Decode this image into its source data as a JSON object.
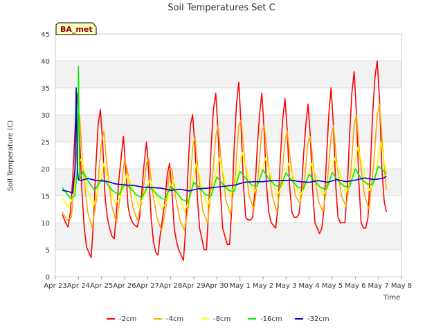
{
  "chart_data": {
    "type": "line",
    "title": "Soil Temperatures Set C",
    "xlabel": "Time",
    "ylabel": "Soil Temperature (C)",
    "badge": "BA_met",
    "ylim": [
      0,
      45
    ],
    "yticks": [
      "0",
      "5",
      "10",
      "15",
      "20",
      "25",
      "30",
      "35",
      "40",
      "45"
    ],
    "xlim": [
      0,
      15
    ],
    "xticks": [
      "Apr 23",
      "Apr 24",
      "Apr 25",
      "Apr 26",
      "Apr 27",
      "Apr 28",
      "Apr 29",
      "Apr 30",
      "May 1",
      "May 2",
      "May 3",
      "May 4",
      "May 5",
      "May 6",
      "May 7",
      "May 8"
    ],
    "x_unit": "days since Apr 23 00:00",
    "grid": true,
    "legend_position": "bottom",
    "series": [
      {
        "name": "-2cm",
        "color": "#ff0000",
        "x": [
          0.3,
          0.45,
          0.55,
          0.65,
          0.75,
          0.85,
          0.95,
          1.05,
          1.15,
          1.25,
          1.35,
          1.45,
          1.55,
          1.65,
          1.75,
          1.85,
          1.95,
          2.05,
          2.15,
          2.25,
          2.35,
          2.45,
          2.55,
          2.65,
          2.75,
          2.85,
          2.95,
          3.05,
          3.15,
          3.25,
          3.35,
          3.45,
          3.55,
          3.65,
          3.75,
          3.85,
          3.95,
          4.05,
          4.15,
          4.25,
          4.35,
          4.45,
          4.55,
          4.65,
          4.75,
          4.85,
          4.95,
          5.05,
          5.15,
          5.25,
          5.35,
          5.45,
          5.55,
          5.65,
          5.75,
          5.85,
          5.95,
          6.05,
          6.15,
          6.25,
          6.35,
          6.45,
          6.55,
          6.65,
          6.75,
          6.85,
          6.95,
          7.05,
          7.15,
          7.25,
          7.35,
          7.45,
          7.55,
          7.65,
          7.75,
          7.85,
          7.95,
          8.05,
          8.15,
          8.25,
          8.35,
          8.45,
          8.55,
          8.65,
          8.75,
          8.85,
          8.95,
          9.05,
          9.15,
          9.25,
          9.35,
          9.45,
          9.55,
          9.65,
          9.75,
          9.85,
          9.95,
          10.05,
          10.15,
          10.25,
          10.35,
          10.45,
          10.55,
          10.65,
          10.75,
          10.85,
          10.95,
          11.05,
          11.15,
          11.25,
          11.35,
          11.45,
          11.55,
          11.65,
          11.75,
          11.85,
          11.95,
          12.05,
          12.15,
          12.25,
          12.35,
          12.45,
          12.55,
          12.65,
          12.75,
          12.85,
          12.95,
          13.05,
          13.15,
          13.25,
          13.35,
          13.45,
          13.55,
          13.65,
          13.75,
          13.85,
          13.95,
          14.05,
          14.15,
          14.25,
          14.35
        ],
        "y": [
          11.5,
          10,
          9.2,
          12,
          18,
          27,
          34,
          26,
          16,
          9,
          5.5,
          4.5,
          3.5,
          10,
          20,
          28,
          31,
          25,
          15,
          11,
          9,
          7.5,
          7,
          12,
          18,
          22,
          26,
          20,
          13,
          11,
          10,
          9.5,
          9.2,
          11,
          16,
          21,
          25,
          19,
          11,
          6.5,
          4.5,
          4,
          8,
          11,
          14,
          19,
          21,
          16,
          9,
          6.5,
          5,
          4,
          3,
          9,
          20,
          28,
          30,
          24,
          15,
          9,
          7,
          5,
          5,
          13,
          24,
          31,
          34,
          27,
          16,
          9,
          7.5,
          6,
          6,
          13,
          24,
          32,
          36,
          28,
          17,
          11,
          10.5,
          10.5,
          11,
          16,
          24,
          30,
          34,
          27,
          17,
          12,
          10,
          9.5,
          9,
          13,
          22,
          29,
          33,
          27,
          17,
          12,
          11,
          11,
          11.5,
          15,
          22,
          28,
          32,
          26,
          16,
          10,
          9,
          8,
          9,
          13,
          22,
          30,
          35,
          28,
          17,
          11,
          10,
          10,
          10,
          16,
          26,
          34,
          38,
          30,
          18,
          10,
          9,
          9,
          11,
          20,
          30,
          37,
          40,
          33,
          20,
          14,
          12
        ]
      },
      {
        "name": "-4cm",
        "color": "#ffa500",
        "x": [
          0.3,
          0.5,
          0.7,
          0.9,
          1.05,
          1.2,
          1.4,
          1.6,
          1.8,
          2.0,
          2.1,
          2.25,
          2.45,
          2.65,
          2.85,
          3.0,
          3.15,
          3.35,
          3.55,
          3.75,
          3.95,
          4.05,
          4.2,
          4.4,
          4.6,
          4.8,
          4.95,
          5.05,
          5.2,
          5.4,
          5.6,
          5.8,
          5.95,
          6.05,
          6.2,
          6.4,
          6.6,
          6.8,
          6.95,
          7.05,
          7.2,
          7.4,
          7.6,
          7.8,
          7.95,
          8.05,
          8.2,
          8.4,
          8.6,
          8.8,
          8.95,
          9.05,
          9.2,
          9.4,
          9.6,
          9.8,
          9.95,
          10.05,
          10.2,
          10.4,
          10.6,
          10.8,
          10.95,
          11.05,
          11.2,
          11.4,
          11.6,
          11.8,
          11.95,
          12.05,
          12.2,
          12.4,
          12.6,
          12.8,
          12.95,
          13.05,
          13.2,
          13.4,
          13.6,
          13.8,
          13.95,
          14.05,
          14.2,
          14.35
        ],
        "y": [
          12,
          10.5,
          11,
          22,
          30,
          20,
          12,
          9,
          15,
          25,
          27,
          20,
          13,
          10,
          16,
          22,
          19,
          13,
          10.5,
          14,
          21,
          22,
          16,
          11,
          8.5,
          13,
          20,
          20,
          15,
          10.5,
          8.5,
          14,
          24,
          26,
          19,
          12,
          10,
          18,
          26,
          28,
          21,
          14,
          11.5,
          19,
          28,
          29,
          22,
          15,
          12.5,
          19,
          27,
          28,
          22,
          15,
          12,
          18,
          25,
          27,
          21,
          15,
          13.5,
          18,
          25,
          26,
          20,
          14,
          12,
          18,
          26,
          28,
          21,
          15,
          13,
          19,
          28,
          30,
          22,
          15,
          12.5,
          21,
          30,
          32,
          23,
          16
        ]
      },
      {
        "name": "-8cm",
        "color": "#ffff00",
        "x": [
          0.3,
          0.55,
          0.8,
          1.0,
          1.15,
          1.4,
          1.65,
          1.9,
          2.1,
          2.35,
          2.6,
          2.85,
          3.1,
          3.35,
          3.6,
          3.85,
          4.1,
          4.35,
          4.6,
          4.85,
          5.1,
          5.35,
          5.6,
          5.85,
          6.1,
          6.35,
          6.6,
          6.85,
          7.1,
          7.35,
          7.6,
          7.85,
          8.1,
          8.35,
          8.6,
          8.85,
          9.1,
          9.35,
          9.6,
          9.85,
          10.1,
          10.35,
          10.6,
          10.85,
          11.1,
          11.35,
          11.6,
          11.85,
          12.1,
          12.35,
          12.6,
          12.85,
          13.1,
          13.35,
          13.6,
          13.85,
          14.1,
          14.35
        ],
        "y": [
          14.5,
          13,
          15,
          21,
          22,
          16,
          13,
          17,
          21,
          17,
          13.5,
          15,
          19,
          16.5,
          13,
          15,
          18,
          15.5,
          12.5,
          14,
          18,
          15,
          12,
          15,
          21,
          17,
          13,
          17,
          22,
          18,
          15,
          18,
          23,
          19,
          15.5,
          18,
          22,
          18.5,
          15,
          17,
          21,
          18,
          15,
          17,
          21,
          18,
          15,
          17,
          22,
          19,
          15.5,
          18,
          24,
          20,
          16,
          18,
          25,
          19
        ]
      },
      {
        "name": "-16cm",
        "color": "#00ee00",
        "x": [
          0.3,
          0.65,
          0.85,
          0.95,
          1.0,
          1.05,
          1.2,
          1.45,
          1.7,
          2.0,
          2.2,
          2.45,
          2.75,
          3.0,
          3.25,
          3.5,
          3.75,
          4.0,
          4.25,
          4.5,
          4.75,
          5.0,
          5.25,
          5.5,
          5.75,
          6.0,
          6.25,
          6.5,
          6.75,
          7.0,
          7.25,
          7.5,
          7.75,
          8.0,
          8.25,
          8.5,
          8.75,
          9.0,
          9.25,
          9.5,
          9.75,
          10.0,
          10.25,
          10.5,
          10.75,
          11.0,
          11.25,
          11.5,
          11.75,
          12.0,
          12.25,
          12.5,
          12.75,
          13.0,
          13.25,
          13.5,
          13.75,
          14.0,
          14.25,
          14.35
        ],
        "y": [
          16.5,
          14.5,
          15,
          20,
          39,
          18,
          19.5,
          17.5,
          16,
          18,
          17.5,
          16,
          15.2,
          17.2,
          16.5,
          15.2,
          14.6,
          16.8,
          15.9,
          14.8,
          14.3,
          16.8,
          15.6,
          14.3,
          13.8,
          17.5,
          16.5,
          15.2,
          15,
          18.5,
          17.2,
          16,
          15.8,
          19.5,
          18.2,
          17,
          16.8,
          19.8,
          18.2,
          17,
          16.6,
          19.2,
          17.8,
          16.6,
          16.2,
          19,
          17.6,
          16.5,
          16.2,
          19.3,
          17.8,
          16.8,
          16.6,
          20,
          18.2,
          17.2,
          17,
          20.5,
          19.5,
          19
        ]
      },
      {
        "name": "-32cm",
        "color": "#0000cc",
        "x": [
          0.3,
          0.55,
          0.75,
          0.85,
          0.9,
          0.95,
          1.0,
          1.1,
          1.4,
          1.8,
          2.2,
          2.6,
          3.0,
          3.4,
          3.8,
          4.2,
          4.6,
          5.0,
          5.4,
          5.8,
          6.2,
          6.6,
          7.0,
          7.4,
          7.8,
          8.2,
          8.6,
          9.0,
          9.4,
          9.8,
          10.2,
          10.6,
          11.0,
          11.4,
          11.8,
          12.2,
          12.6,
          13.0,
          13.4,
          13.8,
          14.2,
          14.35
        ],
        "y": [
          16,
          15.8,
          15.5,
          20,
          35,
          20,
          18,
          17.8,
          18.2,
          17.8,
          17.7,
          17.2,
          17,
          16.9,
          16.6,
          16.5,
          16.4,
          16,
          16.2,
          15.9,
          16.3,
          16.4,
          16.6,
          16.8,
          17,
          17.5,
          17.6,
          17.6,
          17.8,
          17.8,
          17.9,
          17.6,
          17.5,
          17.8,
          17.5,
          18,
          17.6,
          17.9,
          18.3,
          18,
          18.2,
          18.6
        ]
      }
    ]
  }
}
